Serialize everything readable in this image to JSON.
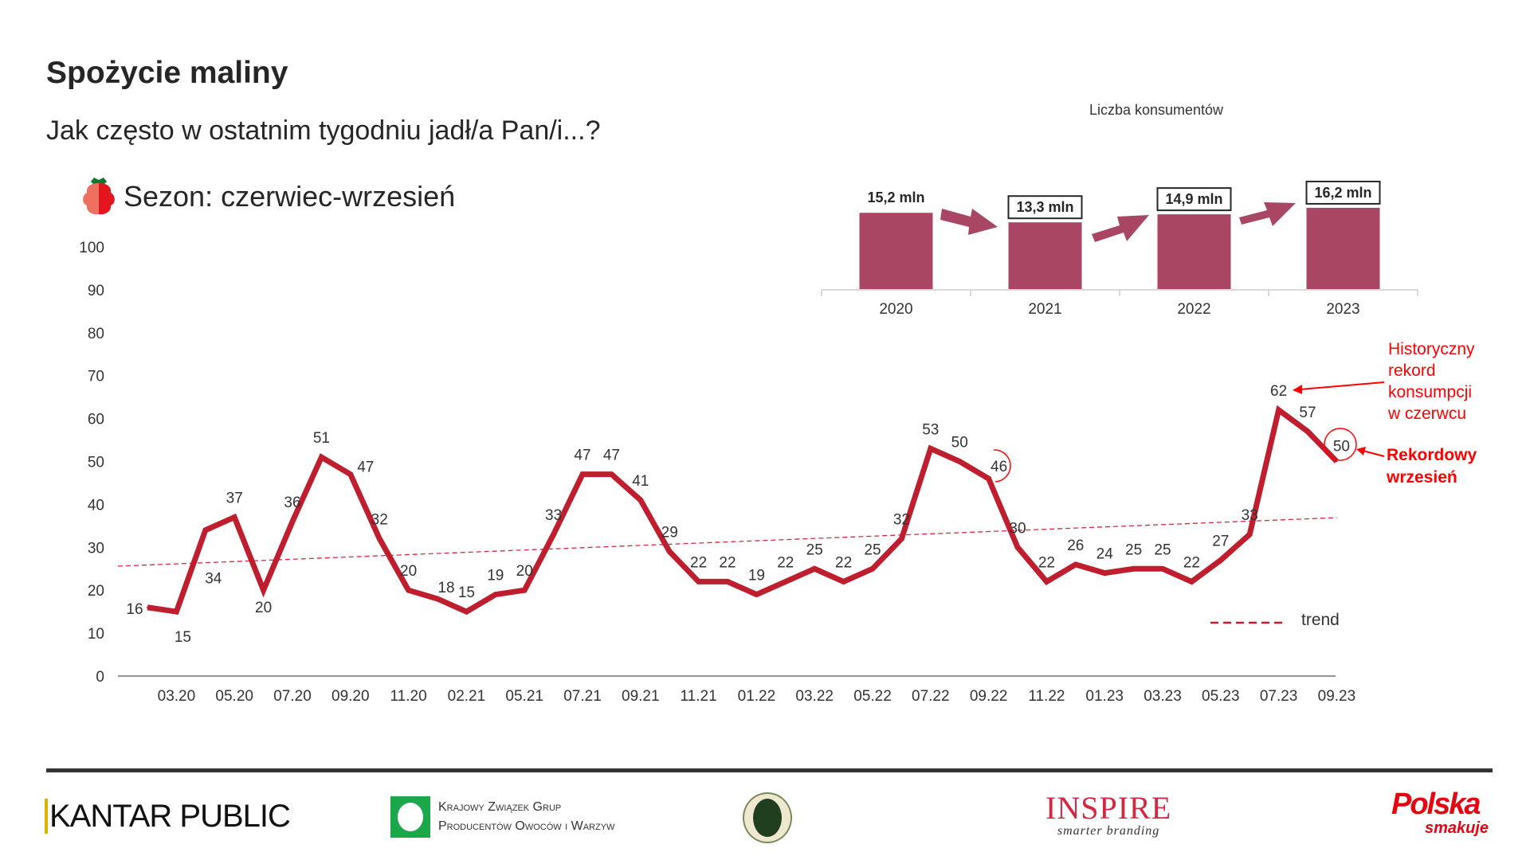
{
  "header": {
    "title": "Spożycie maliny",
    "subtitle": "Jak często w ostatnim tygodniu jadł/a Pan/i...?",
    "season": "Sezon: czerwiec-wrzesień",
    "season_icon": "raspberry-icon"
  },
  "chart_data": [
    {
      "type": "line",
      "title": "Spożycie maliny",
      "ylim": [
        0,
        100
      ],
      "yticks": [
        0,
        10,
        20,
        30,
        40,
        50,
        60,
        70,
        80,
        90,
        100
      ],
      "x_tick_labels": [
        "03.20",
        "05.20",
        "07.20",
        "09.20",
        "11.20",
        "02.21",
        "05.21",
        "07.21",
        "09.21",
        "11.21",
        "01.22",
        "03.22",
        "05.22",
        "07.22",
        "09.22",
        "11.22",
        "01.23",
        "03.23",
        "05.23",
        "07.23",
        "09.23"
      ],
      "series": [
        {
          "name": "Spożycie",
          "color": "#be1e2d",
          "values": [
            16,
            15,
            34,
            37,
            20,
            36,
            51,
            47,
            32,
            20,
            18,
            15,
            19,
            20,
            33,
            47,
            47,
            41,
            29,
            22,
            22,
            19,
            22,
            25,
            22,
            25,
            32,
            53,
            50,
            46,
            30,
            22,
            26,
            24,
            25,
            25,
            22,
            27,
            33,
            62,
            57,
            50
          ]
        }
      ],
      "trend": {
        "name": "trend",
        "start": 25.6,
        "end": 36.9,
        "color": "#d6263f"
      },
      "legend": {
        "label": "trend",
        "placement": "bottom-right"
      },
      "annotations": {
        "record": [
          "Historyczny",
          "rekord",
          "konsumpcji",
          "w czerwcu"
        ],
        "september": [
          "Rekordowy",
          "wrzesień"
        ]
      }
    },
    {
      "type": "bar",
      "title": "Liczba konsumentów",
      "categories": [
        "2020",
        "2021",
        "2022",
        "2023"
      ],
      "values": [
        15.2,
        13.3,
        14.9,
        16.2
      ],
      "value_labels": [
        "15,2 mln",
        "13,3 mln",
        "14,9 mln",
        "16,2 mln"
      ],
      "unit": "mln",
      "color": "#a94664"
    }
  ],
  "footer": {
    "logos": {
      "kantar": "KANTAR PUBLIC",
      "kz_line1": "Krajowy Związek Grup",
      "kz_line2": "Producentów Owoców i Warzyw",
      "inspire": "INSPIRE",
      "inspire_tag": "smarter branding",
      "polska": "Polska",
      "polska_tag": "smakuje"
    }
  }
}
